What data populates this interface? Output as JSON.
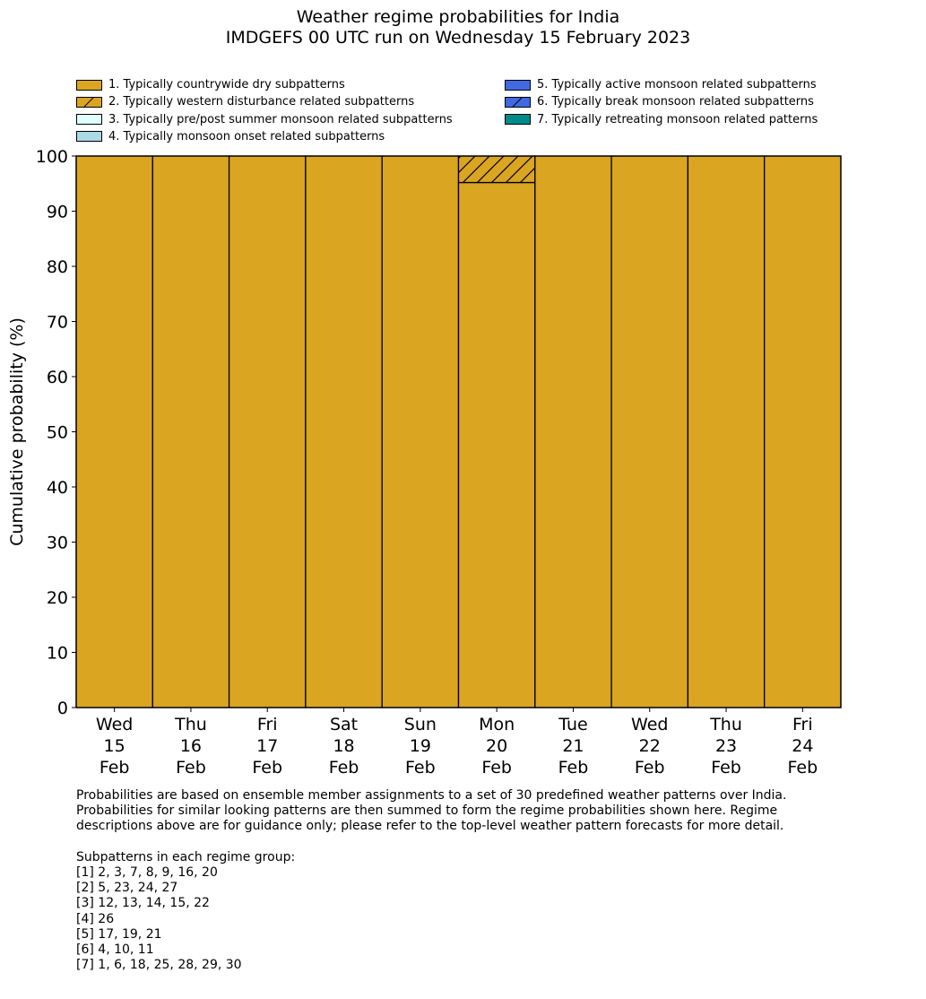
{
  "title": "Weather regime probabilities for India",
  "subtitle": "IMDGEFS 00 UTC run on Wednesday 15 February 2023",
  "legend": [
    {
      "label": "1. Typically countrywide dry subpatterns",
      "color": "#DAA520",
      "hatch": false
    },
    {
      "label": "2. Typically western disturbance related subpatterns",
      "color": "#DAA520",
      "hatch": true
    },
    {
      "label": "3. Typically pre/post summer monsoon related subpatterns",
      "color": "#E0FFFF",
      "hatch": false
    },
    {
      "label": "4. Typically monsoon onset related subpatterns",
      "color": "#ADD8E6",
      "hatch": false
    },
    {
      "label": "5. Typically active monsoon related subpatterns",
      "color": "#4169E1",
      "hatch": false
    },
    {
      "label": "6. Typically break monsoon related subpatterns",
      "color": "#4169E1",
      "hatch": true
    },
    {
      "label": "7. Typically retreating monsoon related patterns",
      "color": "#008B8B",
      "hatch": false
    }
  ],
  "chart_data": {
    "type": "bar",
    "stacked": true,
    "title": "Weather regime probabilities for India",
    "ylabel": "Cumulative probability (%)",
    "xlabel": "",
    "ylim": [
      0,
      100
    ],
    "yticks": [
      0,
      10,
      20,
      30,
      40,
      50,
      60,
      70,
      80,
      90,
      100
    ],
    "categories": [
      [
        "Wed",
        "15",
        "Feb"
      ],
      [
        "Thu",
        "16",
        "Feb"
      ],
      [
        "Fri",
        "17",
        "Feb"
      ],
      [
        "Sat",
        "18",
        "Feb"
      ],
      [
        "Sun",
        "19",
        "Feb"
      ],
      [
        "Mon",
        "20",
        "Feb"
      ],
      [
        "Tue",
        "21",
        "Feb"
      ],
      [
        "Wed",
        "22",
        "Feb"
      ],
      [
        "Thu",
        "23",
        "Feb"
      ],
      [
        "Fri",
        "24",
        "Feb"
      ]
    ],
    "series": [
      {
        "name": "1. Typically countrywide dry subpatterns",
        "values": [
          100,
          100,
          100,
          100,
          100,
          95.2,
          100,
          100,
          100,
          100
        ]
      },
      {
        "name": "2. Typically western disturbance related subpatterns",
        "values": [
          0,
          0,
          0,
          0,
          0,
          4.8,
          0,
          0,
          0,
          0
        ]
      }
    ]
  },
  "notes": "Probabilities are based on ensemble member assignments to a set of 30 predefined weather patterns over India.\nProbabilities for similar looking patterns are then summed to form the regime probabilities shown here. Regime\ndescriptions above are for guidance only; please refer to the top-level weather pattern forecasts for more detail.\n\nSubpatterns in each regime group:\n[1] 2, 3, 7, 8, 9, 16, 20\n[2] 5, 23, 24, 27\n[3] 12, 13, 14, 15, 22\n[4] 26\n[5] 17, 19, 21\n[6] 4, 10, 11\n[7] 1, 6, 18, 25, 28, 29, 30"
}
